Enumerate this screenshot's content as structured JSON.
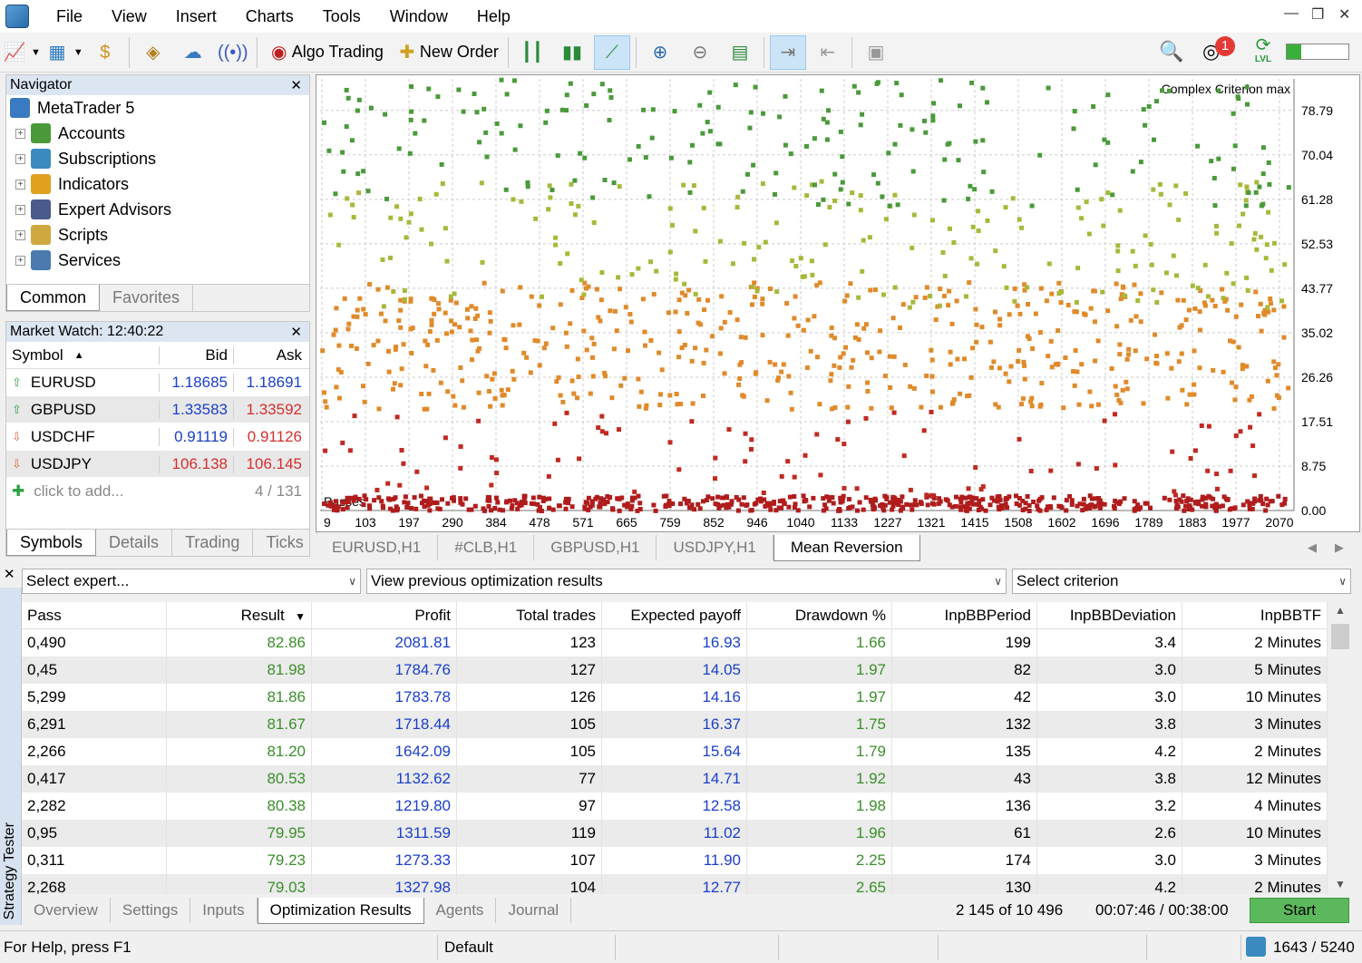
{
  "menu": [
    "File",
    "View",
    "Insert",
    "Charts",
    "Tools",
    "Window",
    "Help"
  ],
  "toolbar": {
    "algo_trading": "Algo Trading",
    "new_order": "New Order",
    "notification_count": "1",
    "level_badge": "LVL"
  },
  "navigator": {
    "title": "Navigator",
    "root": "MetaTrader 5",
    "items": [
      {
        "label": "Accounts",
        "icon": "accounts-icon",
        "color": "#4a9a3a"
      },
      {
        "label": "Subscriptions",
        "icon": "subscriptions-icon",
        "color": "#3a8ac0"
      },
      {
        "label": "Indicators",
        "icon": "indicators-icon",
        "color": "#e0a020"
      },
      {
        "label": "Expert Advisors",
        "icon": "expert-advisors-icon",
        "color": "#4a5a8a"
      },
      {
        "label": "Scripts",
        "icon": "scripts-icon",
        "color": "#d0a840"
      },
      {
        "label": "Services",
        "icon": "services-icon",
        "color": "#4a7ab0"
      }
    ],
    "tabs": [
      "Common",
      "Favorites"
    ]
  },
  "market_watch": {
    "title": "Market Watch: 12:40:22",
    "headers": {
      "symbol": "Symbol",
      "bid": "Bid",
      "ask": "Ask"
    },
    "rows": [
      {
        "symbol": "EURUSD",
        "bid": "1.18685",
        "ask": "1.18691",
        "dir": "up",
        "bid_color": "blue",
        "ask_color": "blue"
      },
      {
        "symbol": "GBPUSD",
        "bid": "1.33583",
        "ask": "1.33592",
        "dir": "up",
        "bid_color": "blue",
        "ask_color": "red"
      },
      {
        "symbol": "USDCHF",
        "bid": "0.91119",
        "ask": "0.91126",
        "dir": "down",
        "bid_color": "blue",
        "ask_color": "red"
      },
      {
        "symbol": "USDJPY",
        "bid": "106.138",
        "ask": "106.145",
        "dir": "down",
        "bid_color": "red",
        "ask_color": "red"
      }
    ],
    "add_label": "click to add...",
    "count": "4 / 131",
    "tabs": [
      "Symbols",
      "Details",
      "Trading",
      "Ticks"
    ]
  },
  "chart_tabs": [
    "EURUSD,H1",
    "#CLB,H1",
    "GBPUSD,H1",
    "USDJPY,H1",
    "Mean Reversion"
  ],
  "chart_data": {
    "type": "scatter",
    "title": "Complex Criterion max",
    "xlabel": "Passes",
    "x_ticks": [
      "9",
      "103",
      "197",
      "290",
      "384",
      "478",
      "571",
      "665",
      "759",
      "852",
      "946",
      "1040",
      "1133",
      "1227",
      "1321",
      "1415",
      "1508",
      "1602",
      "1696",
      "1789",
      "1883",
      "1977",
      "2070"
    ],
    "y_ticks": [
      "78.79",
      "70.04",
      "61.28",
      "52.53",
      "43.77",
      "35.02",
      "26.26",
      "17.51",
      "8.75",
      "0.00"
    ],
    "xlim": [
      9,
      2100
    ],
    "ylim": [
      0,
      85
    ],
    "color_scale": [
      "#b01c1c",
      "#e08a2a",
      "#a8b83a",
      "#4a9a3a",
      "#1a5a2a"
    ],
    "grid": true,
    "note": "Approximately 2145 scattered optimization passes; value bands estimated from visual clusters",
    "bands": [
      {
        "y_range": [
          0,
          3
        ],
        "density": "very high",
        "color": "#b01c1c"
      },
      {
        "y_range": [
          3,
          20
        ],
        "density": "low",
        "color": "#c02a22"
      },
      {
        "y_range": [
          20,
          45
        ],
        "density": "high",
        "color": "#e08a2a"
      },
      {
        "y_range": [
          40,
          65
        ],
        "density": "medium",
        "color": "#a8b83a"
      },
      {
        "y_range": [
          60,
          85
        ],
        "density": "medium",
        "color": "#4a9a3a"
      }
    ]
  },
  "tester": {
    "side_label": "Strategy Tester",
    "select_expert": "Select expert...",
    "view_results": "View previous optimization results",
    "select_criterion": "Select criterion",
    "columns": [
      "Pass",
      "Result",
      "Profit",
      "Total trades",
      "Expected payoff",
      "Drawdown %",
      "InpBBPeriod",
      "InpBBDeviation",
      "InpBBTF"
    ],
    "rows": [
      [
        "0,490",
        "82.86",
        "2081.81",
        "123",
        "16.93",
        "1.66",
        "199",
        "3.4",
        "2 Minutes"
      ],
      [
        "0,45",
        "81.98",
        "1784.76",
        "127",
        "14.05",
        "1.97",
        "82",
        "3.0",
        "5 Minutes"
      ],
      [
        "5,299",
        "81.86",
        "1783.78",
        "126",
        "14.16",
        "1.97",
        "42",
        "3.0",
        "10 Minutes"
      ],
      [
        "6,291",
        "81.67",
        "1718.44",
        "105",
        "16.37",
        "1.75",
        "132",
        "3.8",
        "3 Minutes"
      ],
      [
        "2,266",
        "81.20",
        "1642.09",
        "105",
        "15.64",
        "1.79",
        "135",
        "4.2",
        "2 Minutes"
      ],
      [
        "0,417",
        "80.53",
        "1132.62",
        "77",
        "14.71",
        "1.92",
        "43",
        "3.8",
        "12 Minutes"
      ],
      [
        "2,282",
        "80.38",
        "1219.80",
        "97",
        "12.58",
        "1.98",
        "136",
        "3.2",
        "4 Minutes"
      ],
      [
        "0,95",
        "79.95",
        "1311.59",
        "119",
        "11.02",
        "1.96",
        "61",
        "2.6",
        "10 Minutes"
      ],
      [
        "0,311",
        "79.23",
        "1273.33",
        "107",
        "11.90",
        "2.25",
        "174",
        "3.0",
        "3 Minutes"
      ],
      [
        "2,268",
        "79.03",
        "1327.98",
        "104",
        "12.77",
        "2.65",
        "130",
        "4.2",
        "2 Minutes"
      ]
    ],
    "tabs": [
      "Overview",
      "Settings",
      "Inputs",
      "Optimization Results",
      "Agents",
      "Journal"
    ],
    "progress_text": "2 145 of 10 496",
    "time_text": "00:07:46 / 00:38:00",
    "start_label": "Start"
  },
  "status": {
    "help": "For Help, press F1",
    "profile": "Default",
    "traffic": "1643 / 5240"
  }
}
